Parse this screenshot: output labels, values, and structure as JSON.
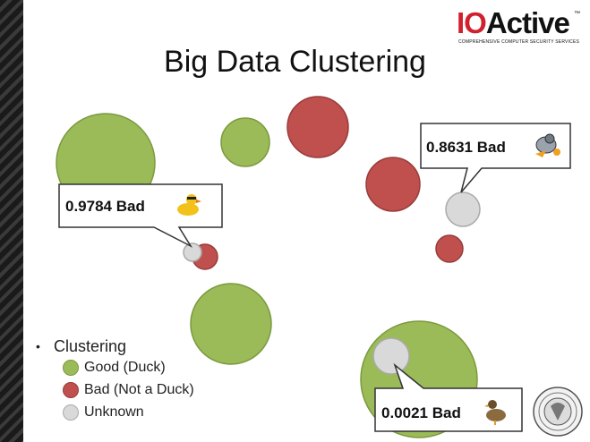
{
  "logo": {
    "brand_red": "IO",
    "brand_black": "Active",
    "tm": "™",
    "tagline": "COMPREHENSIVE COMPUTER SECURITY SERVICES"
  },
  "title": "Big Data Clustering",
  "callouts": [
    {
      "label": "0.9784 Bad",
      "icon": "rubber-duck-icon"
    },
    {
      "label": "0.8631 Bad",
      "icon": "robot-duck-icon"
    },
    {
      "label": "0.0021 Bad",
      "icon": "duck-icon"
    }
  ],
  "legend": {
    "heading": "Clustering",
    "items": [
      {
        "label": "Good (Duck)",
        "color": "#9bbb59"
      },
      {
        "label": "Bad (Not a Duck)",
        "color": "#c0504d"
      },
      {
        "label": "Unknown",
        "color": "#d9d9d9"
      }
    ]
  },
  "colors": {
    "good": "#9bbb59",
    "bad": "#c0504d",
    "unknown": "#d9d9d9"
  }
}
